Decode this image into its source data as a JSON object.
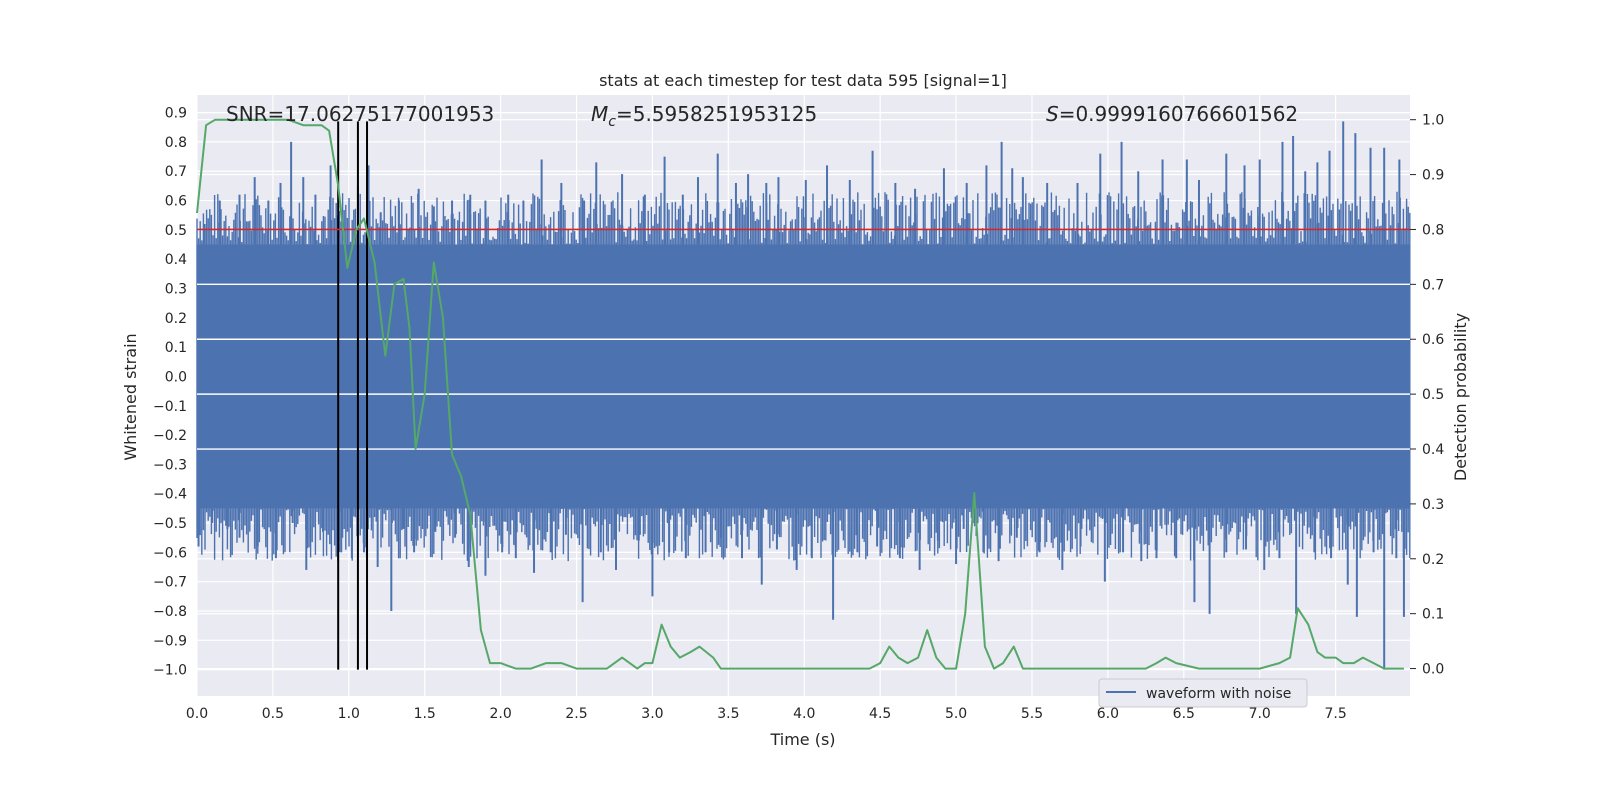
{
  "chart_data": {
    "type": "line",
    "title": "stats at each timestep for test data 595 [signal=1]",
    "xlabel": "Time (s)",
    "ylabel_left": "Whitened strain",
    "ylabel_right": "Detection probability",
    "xlim": [
      0.0,
      7.99
    ],
    "ylim_left": [
      -1.09,
      0.96
    ],
    "ylim_right": [
      -0.05,
      1.045
    ],
    "x_ticks": [
      "0.0",
      "0.5",
      "1.0",
      "1.5",
      "2.0",
      "2.5",
      "3.0",
      "3.5",
      "4.0",
      "4.5",
      "5.0",
      "5.5",
      "6.0",
      "6.5",
      "7.0",
      "7.5"
    ],
    "x_tick_values": [
      0.0,
      0.5,
      1.0,
      1.5,
      2.0,
      2.5,
      3.0,
      3.5,
      4.0,
      4.5,
      5.0,
      5.5,
      6.0,
      6.5,
      7.0,
      7.5
    ],
    "y_ticks_left": [
      "0.9",
      "0.8",
      "0.7",
      "0.6",
      "0.5",
      "0.4",
      "0.3",
      "0.2",
      "0.1",
      "0.0",
      "−0.1",
      "−0.2",
      "−0.3",
      "−0.4",
      "−0.5",
      "−0.6",
      "−0.7",
      "−0.8",
      "−0.9",
      "−1.0"
    ],
    "y_tick_values_left": [
      0.9,
      0.8,
      0.7,
      0.6,
      0.5,
      0.4,
      0.3,
      0.2,
      0.1,
      0.0,
      -0.1,
      -0.2,
      -0.3,
      -0.4,
      -0.5,
      -0.6,
      -0.7,
      -0.8,
      -0.9,
      -1.0
    ],
    "y_ticks_right": [
      "1.0",
      "0.9",
      "0.8",
      "0.7",
      "0.6",
      "0.5",
      "0.4",
      "0.3",
      "0.2",
      "0.1",
      "0.0"
    ],
    "y_tick_values_right": [
      1.0,
      0.9,
      0.8,
      0.7,
      0.6,
      0.5,
      0.4,
      0.3,
      0.2,
      0.1,
      0.0
    ],
    "grid": true,
    "legend_position": "lower-right",
    "annotations": {
      "snr": "SNR=17.06275177001953",
      "mc_prefix": "M",
      "mc_sub": "c",
      "mc_value": "=5.5958251953125",
      "s_prefix": "S",
      "s_value": "=0.9999160766601562"
    },
    "threshold_line": {
      "y_right": 0.8,
      "color": "#d62728"
    },
    "vertical_markers": {
      "x": [
        0.93,
        1.06,
        1.12
      ],
      "y_left_range": [
        -1.0,
        0.87
      ],
      "color": "#000000"
    },
    "waveform": {
      "name": "waveform with noise",
      "color": "#4c72b0",
      "band_y": [
        -0.45,
        0.45
      ],
      "spikes": [
        [
          0.05,
          0.52
        ],
        [
          0.15,
          0.6
        ],
        [
          0.28,
          0.62
        ],
        [
          0.38,
          0.68
        ],
        [
          0.47,
          0.6
        ],
        [
          0.55,
          0.66
        ],
        [
          0.62,
          0.8
        ],
        [
          0.7,
          0.68
        ],
        [
          0.78,
          0.62
        ],
        [
          0.88,
          0.72
        ],
        [
          1.06,
          0.65
        ],
        [
          1.13,
          0.72
        ],
        [
          1.21,
          0.56
        ],
        [
          1.33,
          0.6
        ],
        [
          1.46,
          0.64
        ],
        [
          1.56,
          0.58
        ],
        [
          1.68,
          0.6
        ],
        [
          1.8,
          0.62
        ],
        [
          1.9,
          0.6
        ],
        [
          2.05,
          0.62
        ],
        [
          2.15,
          0.6
        ],
        [
          2.27,
          0.74
        ],
        [
          2.4,
          0.66
        ],
        [
          2.55,
          0.6
        ],
        [
          2.63,
          0.73
        ],
        [
          2.8,
          0.69
        ],
        [
          2.95,
          0.62
        ],
        [
          3.08,
          0.75
        ],
        [
          3.2,
          0.62
        ],
        [
          3.3,
          0.68
        ],
        [
          3.43,
          0.76
        ],
        [
          3.55,
          0.66
        ],
        [
          3.63,
          0.69
        ],
        [
          3.75,
          0.66
        ],
        [
          3.83,
          0.68
        ],
        [
          4.01,
          0.67
        ],
        [
          4.15,
          0.72
        ],
        [
          4.3,
          0.67
        ],
        [
          4.45,
          0.77
        ],
        [
          4.6,
          0.66
        ],
        [
          4.73,
          0.64
        ],
        [
          4.92,
          0.71
        ],
        [
          5.07,
          0.66
        ],
        [
          5.2,
          0.72
        ],
        [
          5.3,
          0.8
        ],
        [
          5.37,
          0.71
        ],
        [
          5.44,
          0.68
        ],
        [
          5.6,
          0.66
        ],
        [
          5.8,
          0.66
        ],
        [
          5.95,
          0.76
        ],
        [
          6.09,
          0.8
        ],
        [
          6.2,
          0.7
        ],
        [
          6.36,
          0.74
        ],
        [
          6.52,
          0.74
        ],
        [
          6.6,
          0.67
        ],
        [
          6.78,
          0.76
        ],
        [
          6.9,
          0.72
        ],
        [
          7.0,
          0.74
        ],
        [
          7.15,
          0.8
        ],
        [
          7.22,
          0.82
        ],
        [
          7.3,
          0.7
        ],
        [
          7.38,
          0.73
        ],
        [
          7.46,
          0.77
        ],
        [
          7.55,
          0.87
        ],
        [
          7.63,
          0.83
        ],
        [
          7.73,
          0.78
        ],
        [
          7.82,
          0.78
        ],
        [
          7.92,
          0.74
        ],
        [
          0.01,
          -0.58
        ],
        [
          0.1,
          -0.5
        ],
        [
          0.2,
          -0.52
        ],
        [
          0.28,
          -0.55
        ],
        [
          0.4,
          -0.58
        ],
        [
          0.52,
          -0.62
        ],
        [
          0.63,
          -0.5
        ],
        [
          0.72,
          -0.66
        ],
        [
          0.83,
          -0.53
        ],
        [
          0.95,
          -0.6
        ],
        [
          1.02,
          -0.62
        ],
        [
          1.1,
          -0.6
        ],
        [
          1.19,
          -0.65
        ],
        [
          1.28,
          -0.8
        ],
        [
          1.36,
          -0.52
        ],
        [
          1.43,
          -0.6
        ],
        [
          1.57,
          -0.53
        ],
        [
          1.7,
          -0.55
        ],
        [
          1.79,
          -0.65
        ],
        [
          1.9,
          -0.68
        ],
        [
          2.01,
          -0.6
        ],
        [
          2.1,
          -0.62
        ],
        [
          2.22,
          -0.67
        ],
        [
          2.33,
          -0.6
        ],
        [
          2.43,
          -0.54
        ],
        [
          2.54,
          -0.77
        ],
        [
          2.66,
          -0.6
        ],
        [
          2.76,
          -0.66
        ],
        [
          2.91,
          -0.56
        ],
        [
          3.0,
          -0.75
        ],
        [
          3.11,
          -0.6
        ],
        [
          3.22,
          -0.62
        ],
        [
          3.35,
          -0.6
        ],
        [
          3.45,
          -0.55
        ],
        [
          3.59,
          -0.62
        ],
        [
          3.72,
          -0.71
        ],
        [
          3.82,
          -0.59
        ],
        [
          3.95,
          -0.66
        ],
        [
          4.05,
          -0.62
        ],
        [
          4.19,
          -0.83
        ],
        [
          4.35,
          -0.6
        ],
        [
          4.48,
          -0.58
        ],
        [
          4.63,
          -0.62
        ],
        [
          4.76,
          -0.66
        ],
        [
          4.88,
          -0.56
        ],
        [
          5.0,
          -0.64
        ],
        [
          5.05,
          -0.52
        ],
        [
          5.18,
          -0.6
        ],
        [
          5.28,
          -0.63
        ],
        [
          5.4,
          -0.55
        ],
        [
          5.55,
          -0.6
        ],
        [
          5.7,
          -0.66
        ],
        [
          5.82,
          -0.58
        ],
        [
          5.98,
          -0.7
        ],
        [
          6.1,
          -0.6
        ],
        [
          6.22,
          -0.63
        ],
        [
          6.32,
          -0.62
        ],
        [
          6.45,
          -0.62
        ],
        [
          6.57,
          -0.77
        ],
        [
          6.67,
          -0.81
        ],
        [
          6.78,
          -0.6
        ],
        [
          6.91,
          -0.59
        ],
        [
          7.03,
          -0.66
        ],
        [
          7.13,
          -0.62
        ],
        [
          7.24,
          -0.81
        ],
        [
          7.36,
          -0.6
        ],
        [
          7.47,
          -0.62
        ],
        [
          7.58,
          -0.71
        ],
        [
          7.64,
          -0.82
        ],
        [
          7.75,
          -0.6
        ],
        [
          7.82,
          -1.0
        ],
        [
          7.9,
          -0.62
        ],
        [
          7.95,
          -0.82
        ]
      ]
    },
    "detection_probability": {
      "color": "#55a868",
      "x": [
        0.0,
        0.06,
        0.12,
        0.25,
        0.45,
        0.6,
        0.7,
        0.82,
        0.87,
        0.93,
        0.99,
        1.05,
        1.1,
        1.17,
        1.24,
        1.3,
        1.36,
        1.4,
        1.44,
        1.5,
        1.56,
        1.62,
        1.68,
        1.74,
        1.8,
        1.87,
        1.93,
        2.0,
        2.1,
        2.2,
        2.3,
        2.4,
        2.5,
        2.6,
        2.7,
        2.8,
        2.85,
        2.9,
        2.95,
        3.0,
        3.06,
        3.12,
        3.18,
        3.25,
        3.31,
        3.4,
        3.45,
        3.55,
        3.7,
        3.9,
        4.1,
        4.3,
        4.43,
        4.5,
        4.56,
        4.62,
        4.68,
        4.75,
        4.81,
        4.87,
        4.93,
        5.0,
        5.06,
        5.12,
        5.19,
        5.25,
        5.31,
        5.38,
        5.44,
        5.55,
        5.7,
        5.9,
        6.1,
        6.25,
        6.32,
        6.38,
        6.45,
        6.6,
        6.8,
        7.0,
        7.13,
        7.2,
        7.25,
        7.32,
        7.38,
        7.43,
        7.5,
        7.55,
        7.62,
        7.68,
        7.75,
        7.82,
        7.9,
        7.95
      ],
      "y": [
        0.83,
        0.99,
        1.0,
        1.0,
        1.0,
        1.0,
        0.99,
        0.99,
        0.98,
        0.88,
        0.73,
        0.8,
        0.82,
        0.74,
        0.57,
        0.7,
        0.71,
        0.62,
        0.4,
        0.5,
        0.74,
        0.64,
        0.39,
        0.35,
        0.28,
        0.07,
        0.01,
        0.01,
        0.0,
        0.0,
        0.01,
        0.01,
        0.0,
        0.0,
        0.0,
        0.02,
        0.01,
        0.0,
        0.01,
        0.01,
        0.08,
        0.04,
        0.02,
        0.03,
        0.04,
        0.02,
        0.0,
        0.0,
        0.0,
        0.0,
        0.0,
        0.0,
        0.0,
        0.01,
        0.04,
        0.02,
        0.01,
        0.02,
        0.07,
        0.02,
        0.0,
        0.0,
        0.1,
        0.32,
        0.04,
        0.0,
        0.01,
        0.04,
        0.0,
        0.0,
        0.0,
        0.0,
        0.0,
        0.0,
        0.01,
        0.02,
        0.01,
        0.0,
        0.0,
        0.0,
        0.01,
        0.02,
        0.11,
        0.08,
        0.03,
        0.02,
        0.02,
        0.01,
        0.01,
        0.02,
        0.01,
        0.0,
        0.0,
        0.0
      ]
    }
  }
}
